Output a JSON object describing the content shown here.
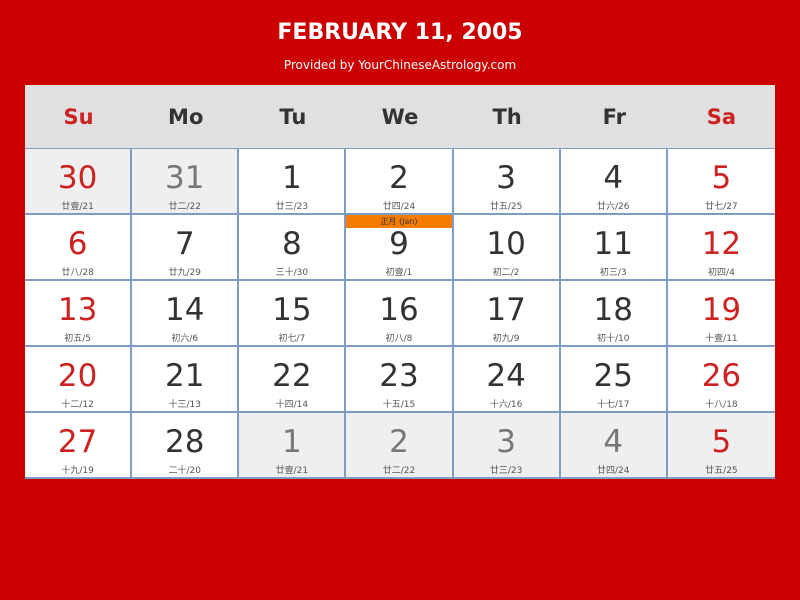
{
  "title": "FEBRUARY 11, 2005",
  "subtitle": "Provided by YourChineseAstrology.com",
  "weekdays": [
    "Su",
    "Mo",
    "Tu",
    "We",
    "Th",
    "Fr",
    "Sa"
  ],
  "colors": {
    "background": "#cc0000",
    "weekend": "#cc2222",
    "month_marker": "#f57c00"
  },
  "days": [
    {
      "day": "30",
      "lunar": "廿壹/21",
      "other": true
    },
    {
      "day": "31",
      "lunar": "廿二/22",
      "other": true
    },
    {
      "day": "1",
      "lunar": "廿三/23"
    },
    {
      "day": "2",
      "lunar": "廿四/24"
    },
    {
      "day": "3",
      "lunar": "廿五/25"
    },
    {
      "day": "4",
      "lunar": "廿六/26"
    },
    {
      "day": "5",
      "lunar": "廿七/27"
    },
    {
      "day": "6",
      "lunar": "廿八/28"
    },
    {
      "day": "7",
      "lunar": "廿九/29"
    },
    {
      "day": "8",
      "lunar": "三十/30"
    },
    {
      "day": "9",
      "lunar": "初壹/1",
      "month_label": "正月 (Jan)"
    },
    {
      "day": "10",
      "lunar": "初二/2"
    },
    {
      "day": "11",
      "lunar": "初三/3"
    },
    {
      "day": "12",
      "lunar": "初四/4"
    },
    {
      "day": "13",
      "lunar": "初五/5"
    },
    {
      "day": "14",
      "lunar": "初六/6"
    },
    {
      "day": "15",
      "lunar": "初七/7"
    },
    {
      "day": "16",
      "lunar": "初八/8"
    },
    {
      "day": "17",
      "lunar": "初九/9"
    },
    {
      "day": "18",
      "lunar": "初十/10"
    },
    {
      "day": "19",
      "lunar": "十壹/11"
    },
    {
      "day": "20",
      "lunar": "十二/12"
    },
    {
      "day": "21",
      "lunar": "十三/13"
    },
    {
      "day": "22",
      "lunar": "十四/14"
    },
    {
      "day": "23",
      "lunar": "十五/15"
    },
    {
      "day": "24",
      "lunar": "十六/16"
    },
    {
      "day": "25",
      "lunar": "十七/17"
    },
    {
      "day": "26",
      "lunar": "十八/18"
    },
    {
      "day": "27",
      "lunar": "十九/19"
    },
    {
      "day": "28",
      "lunar": "二十/20"
    },
    {
      "day": "1",
      "lunar": "廿壹/21",
      "other": true
    },
    {
      "day": "2",
      "lunar": "廿二/22",
      "other": true
    },
    {
      "day": "3",
      "lunar": "廿三/23",
      "other": true
    },
    {
      "day": "4",
      "lunar": "廿四/24",
      "other": true
    },
    {
      "day": "5",
      "lunar": "廿五/25",
      "other": true
    }
  ]
}
